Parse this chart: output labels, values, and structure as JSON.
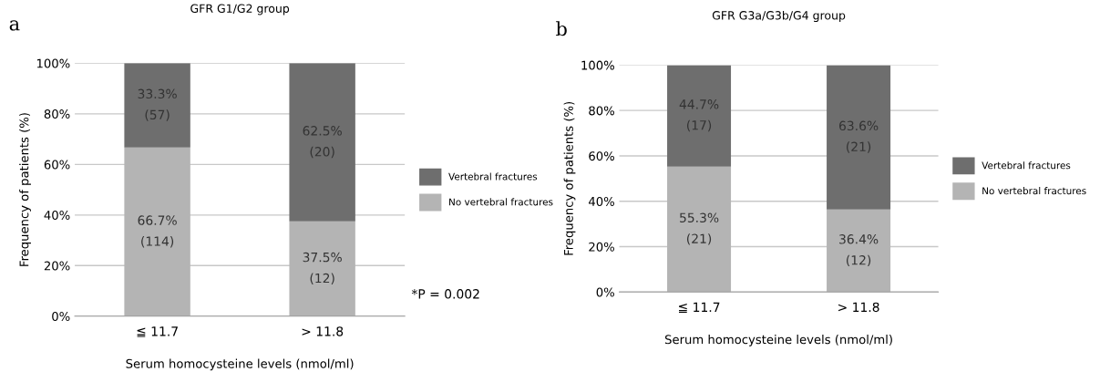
{
  "chart_data": [
    {
      "type": "bar",
      "title": "GFR G1/G2 group",
      "xlabel": "Serum homocysteine levels (nmol/ml)",
      "ylabel": "Frequency of patients (%)",
      "categories": [
        "≦ 11.7",
        "> 11.8"
      ],
      "stacked": true,
      "series": [
        {
          "name": "No vertebral fractures",
          "color": "#b4b4b4",
          "values": [
            66.7,
            37.5
          ],
          "value_labels": [
            "66.7%\n(114)",
            "37.5%\n(12)"
          ]
        },
        {
          "name": "Vertebral fractures",
          "color": "#6e6e6e",
          "values": [
            33.3,
            62.5
          ],
          "value_labels": [
            "33.3%\n(57)",
            "62.5%\n(20)"
          ]
        }
      ],
      "ylim": [
        0,
        100
      ],
      "yticks": [
        {
          "value": 0,
          "label": "0%"
        },
        {
          "value": 20,
          "label": "20%"
        },
        {
          "value": 40,
          "label": "40%"
        },
        {
          "value": 60,
          "label": "60%"
        },
        {
          "value": 80,
          "label": "80%"
        },
        {
          "value": 100,
          "label": "100%"
        }
      ],
      "grid": "y",
      "legend": "right",
      "annotations": [
        "a",
        "*P = 0.002"
      ]
    },
    {
      "type": "bar",
      "title": "GFR G3a/G3b/G4 group",
      "xlabel": "Serum homocysteine levels (nmol/ml)",
      "ylabel": "Frequency of patients (%)",
      "categories": [
        "≦ 11.7",
        "> 11.8"
      ],
      "stacked": true,
      "series": [
        {
          "name": "No vertebral fractures",
          "color": "#b4b4b4",
          "values": [
            55.3,
            36.4
          ],
          "value_labels": [
            "55.3%\n(21)",
            "36.4%\n(12)"
          ]
        },
        {
          "name": "Vertebral fractures",
          "color": "#6e6e6e",
          "values": [
            44.7,
            63.6
          ],
          "value_labels": [
            "44.7%\n(17)",
            "63.6%\n(21)"
          ]
        }
      ],
      "ylim": [
        0,
        100
      ],
      "yticks": [
        {
          "value": 0,
          "label": "0%"
        },
        {
          "value": 20,
          "label": "20%"
        },
        {
          "value": 40,
          "label": "40%"
        },
        {
          "value": 60,
          "label": "60%"
        },
        {
          "value": 80,
          "label": "80%"
        },
        {
          "value": 100,
          "label": "100%"
        }
      ],
      "grid": "y",
      "legend": "right",
      "annotations": [
        "b"
      ]
    }
  ]
}
